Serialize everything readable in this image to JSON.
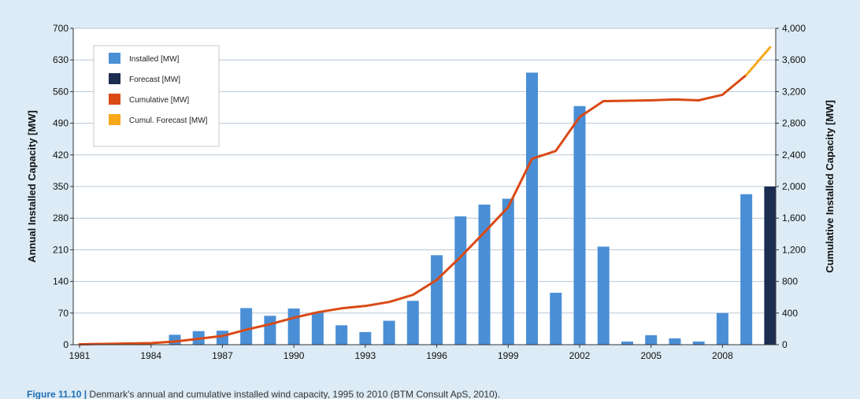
{
  "chart_data": {
    "type": "bar",
    "ylabel_left": "Annual Installed Capacity [MW]",
    "ylabel_right": "Cumulative Installed Capacity [MW]",
    "ylim_left": [
      0,
      700
    ],
    "ylim_right": [
      0,
      4000
    ],
    "yticks_left": [
      "0",
      "70",
      "140",
      "210",
      "280",
      "350",
      "420",
      "490",
      "560",
      "630",
      "700"
    ],
    "yticks_right": [
      "0",
      "400",
      "800",
      "1,200",
      "1,600",
      "2,000",
      "2,400",
      "2,800",
      "3,200",
      "3,600",
      "4,000"
    ],
    "x_tick_labels": [
      "1981",
      "1984",
      "1987",
      "1990",
      "1993",
      "1996",
      "1999",
      "2002",
      "2005",
      "2008"
    ],
    "grid": true,
    "legend_position": "top-left",
    "legend": [
      "Installed [MW]",
      "Forecast [MW]",
      "Cumulative [MW]",
      "Cumul. Forecast [MW]"
    ],
    "years": [
      1981,
      1982,
      1983,
      1984,
      1985,
      1986,
      1987,
      1988,
      1989,
      1990,
      1991,
      1992,
      1993,
      1994,
      1995,
      1996,
      1997,
      1998,
      1999,
      2000,
      2001,
      2002,
      2003,
      2004,
      2005,
      2006,
      2007,
      2008,
      2009,
      2010
    ],
    "series": [
      {
        "name": "Installed [MW]",
        "kind": "bar",
        "axis": "left",
        "values": [
          0,
          0,
          0,
          0,
          22,
          30,
          31,
          81,
          64,
          80,
          72,
          43,
          28,
          53,
          97,
          198,
          284,
          310,
          323,
          602,
          115,
          528,
          217,
          7,
          21,
          14,
          7,
          70,
          333,
          null
        ]
      },
      {
        "name": "Forecast [MW]",
        "kind": "bar",
        "axis": "left",
        "values": [
          null,
          null,
          null,
          null,
          null,
          null,
          null,
          null,
          null,
          null,
          null,
          null,
          null,
          null,
          null,
          null,
          null,
          null,
          null,
          null,
          null,
          null,
          null,
          null,
          null,
          null,
          null,
          null,
          null,
          350
        ]
      },
      {
        "name": "Cumulative [MW]",
        "kind": "line",
        "axis": "right",
        "values": [
          5,
          10,
          15,
          20,
          40,
          75,
          110,
          190,
          260,
          340,
          410,
          460,
          490,
          540,
          630,
          820,
          1110,
          1420,
          1740,
          2350,
          2450,
          2880,
          3080,
          3085,
          3090,
          3100,
          3090,
          3160,
          3410,
          null
        ]
      },
      {
        "name": "Cumul. Forecast [MW]",
        "kind": "line",
        "axis": "right",
        "values": [
          null,
          null,
          null,
          null,
          null,
          null,
          null,
          null,
          null,
          null,
          null,
          null,
          null,
          null,
          null,
          null,
          null,
          null,
          null,
          null,
          null,
          null,
          null,
          null,
          null,
          null,
          null,
          null,
          3410,
          3760
        ]
      }
    ],
    "colors": {
      "installed": "#4a8fd6",
      "forecast": "#1c2d52",
      "cumulative": "#d94a16",
      "cumul_forecast": "#f7a81b",
      "grid": "#b7c7d6",
      "plot_bg": "#ffffff"
    }
  },
  "caption": {
    "figure": "Figure 11.10 |",
    "text": "Denmark's annual and cumulative installed wind capacity, 1995 to 2010 (BTM Consult ApS, 2010)."
  }
}
